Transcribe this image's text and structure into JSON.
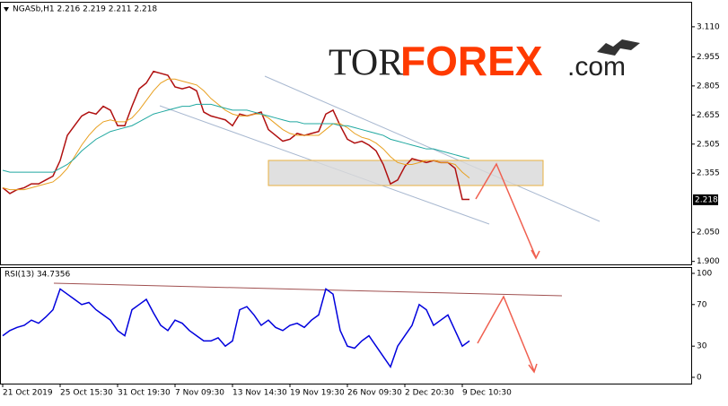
{
  "chart_data": [
    {
      "type": "line",
      "title": "NGASb,H1  2.216 2.219 2.211 2.218",
      "logo": [
        "TOR",
        "FOREX",
        ".com"
      ],
      "categories": [
        "21 Oct 2019",
        null,
        null,
        null,
        null,
        null,
        null,
        null,
        "25 Oct 15:30",
        null,
        null,
        null,
        null,
        null,
        null,
        null,
        "31 Oct 19:30",
        null,
        null,
        null,
        null,
        null,
        null,
        null,
        "7 Nov 09:30",
        null,
        null,
        null,
        null,
        null,
        null,
        null,
        "13 Nov 14:30",
        null,
        null,
        null,
        null,
        null,
        null,
        null,
        "19 Nov 19:30",
        null,
        null,
        null,
        null,
        null,
        null,
        null,
        "26 Nov 09:30",
        null,
        null,
        null,
        null,
        null,
        null,
        null,
        "2 Dec 20:30",
        null,
        null,
        null,
        null,
        null,
        null,
        null,
        "9 Dec 10:30",
        null
      ],
      "series": [
        {
          "color": "#b01010",
          "values": [
            2.28,
            2.25,
            2.27,
            2.28,
            2.3,
            2.3,
            2.32,
            2.34,
            2.42,
            2.55,
            2.6,
            2.65,
            2.67,
            2.66,
            2.7,
            2.68,
            2.6,
            2.6,
            2.7,
            2.79,
            2.82,
            2.88,
            2.87,
            2.86,
            2.8,
            2.79,
            2.8,
            2.78,
            2.67,
            2.65,
            2.64,
            2.63,
            2.6,
            2.66,
            2.65,
            2.66,
            2.67,
            2.58,
            2.55,
            2.52,
            2.53,
            2.56,
            2.55,
            2.56,
            2.57,
            2.66,
            2.68,
            2.6,
            2.53,
            2.51,
            2.52,
            2.5,
            2.47,
            2.4,
            2.3,
            2.32,
            2.39,
            2.43,
            2.42,
            2.41,
            2.42,
            2.41,
            2.41,
            2.38,
            2.22,
            2.22
          ]
        },
        {
          "color": "#e8a020",
          "values": [
            2.28,
            2.27,
            2.27,
            2.27,
            2.28,
            2.29,
            2.3,
            2.31,
            2.34,
            2.38,
            2.44,
            2.5,
            2.55,
            2.59,
            2.62,
            2.63,
            2.62,
            2.62,
            2.64,
            2.68,
            2.73,
            2.78,
            2.82,
            2.84,
            2.84,
            2.83,
            2.82,
            2.81,
            2.78,
            2.74,
            2.71,
            2.68,
            2.66,
            2.65,
            2.65,
            2.66,
            2.66,
            2.64,
            2.61,
            2.58,
            2.56,
            2.55,
            2.55,
            2.55,
            2.55,
            2.58,
            2.61,
            2.61,
            2.59,
            2.56,
            2.54,
            2.53,
            2.51,
            2.48,
            2.44,
            2.41,
            2.4,
            2.4,
            2.41,
            2.42,
            2.42,
            2.41,
            2.41,
            2.4,
            2.36,
            2.33
          ]
        },
        {
          "color": "#20a8a0",
          "values": [
            2.37,
            2.36,
            2.36,
            2.36,
            2.36,
            2.36,
            2.36,
            2.36,
            2.38,
            2.4,
            2.43,
            2.47,
            2.5,
            2.53,
            2.55,
            2.57,
            2.58,
            2.59,
            2.6,
            2.62,
            2.64,
            2.66,
            2.67,
            2.68,
            2.69,
            2.7,
            2.7,
            2.71,
            2.71,
            2.71,
            2.7,
            2.69,
            2.68,
            2.68,
            2.68,
            2.67,
            2.66,
            2.65,
            2.64,
            2.63,
            2.62,
            2.62,
            2.61,
            2.61,
            2.61,
            2.61,
            2.61,
            2.6,
            2.6,
            2.59,
            2.58,
            2.57,
            2.56,
            2.55,
            2.53,
            2.52,
            2.51,
            2.5,
            2.49,
            2.48,
            2.48,
            2.47,
            2.46,
            2.45,
            2.44,
            2.43
          ]
        }
      ],
      "last_price": 2.218,
      "ylim": [
        1.88,
        3.225
      ],
      "yticks": [
        {
          "value": 3.11,
          "label": "3.110"
        },
        2.955,
        2.805,
        2.655,
        2.505,
        2.355,
        {
          "value": 2.05,
          "label": "2.050"
        },
        {
          "value": 1.9,
          "label": "1.900"
        }
      ]
    },
    {
      "type": "line",
      "title": "RSI(13) 34.7356",
      "series": [
        {
          "color": "#0000dd",
          "values": [
            40,
            45,
            48,
            50,
            55,
            52,
            58,
            65,
            85,
            80,
            75,
            70,
            72,
            65,
            60,
            55,
            45,
            40,
            65,
            70,
            75,
            62,
            50,
            45,
            55,
            52,
            45,
            40,
            35,
            35,
            38,
            30,
            35,
            65,
            68,
            60,
            50,
            55,
            48,
            45,
            50,
            52,
            48,
            55,
            60,
            85,
            80,
            45,
            30,
            28,
            35,
            40,
            30,
            20,
            10,
            30,
            40,
            50,
            70,
            65,
            50,
            55,
            60,
            45,
            30,
            35
          ]
        }
      ],
      "ylim": [
        0,
        100
      ],
      "yticks": [
        100,
        70,
        30,
        0
      ]
    }
  ]
}
